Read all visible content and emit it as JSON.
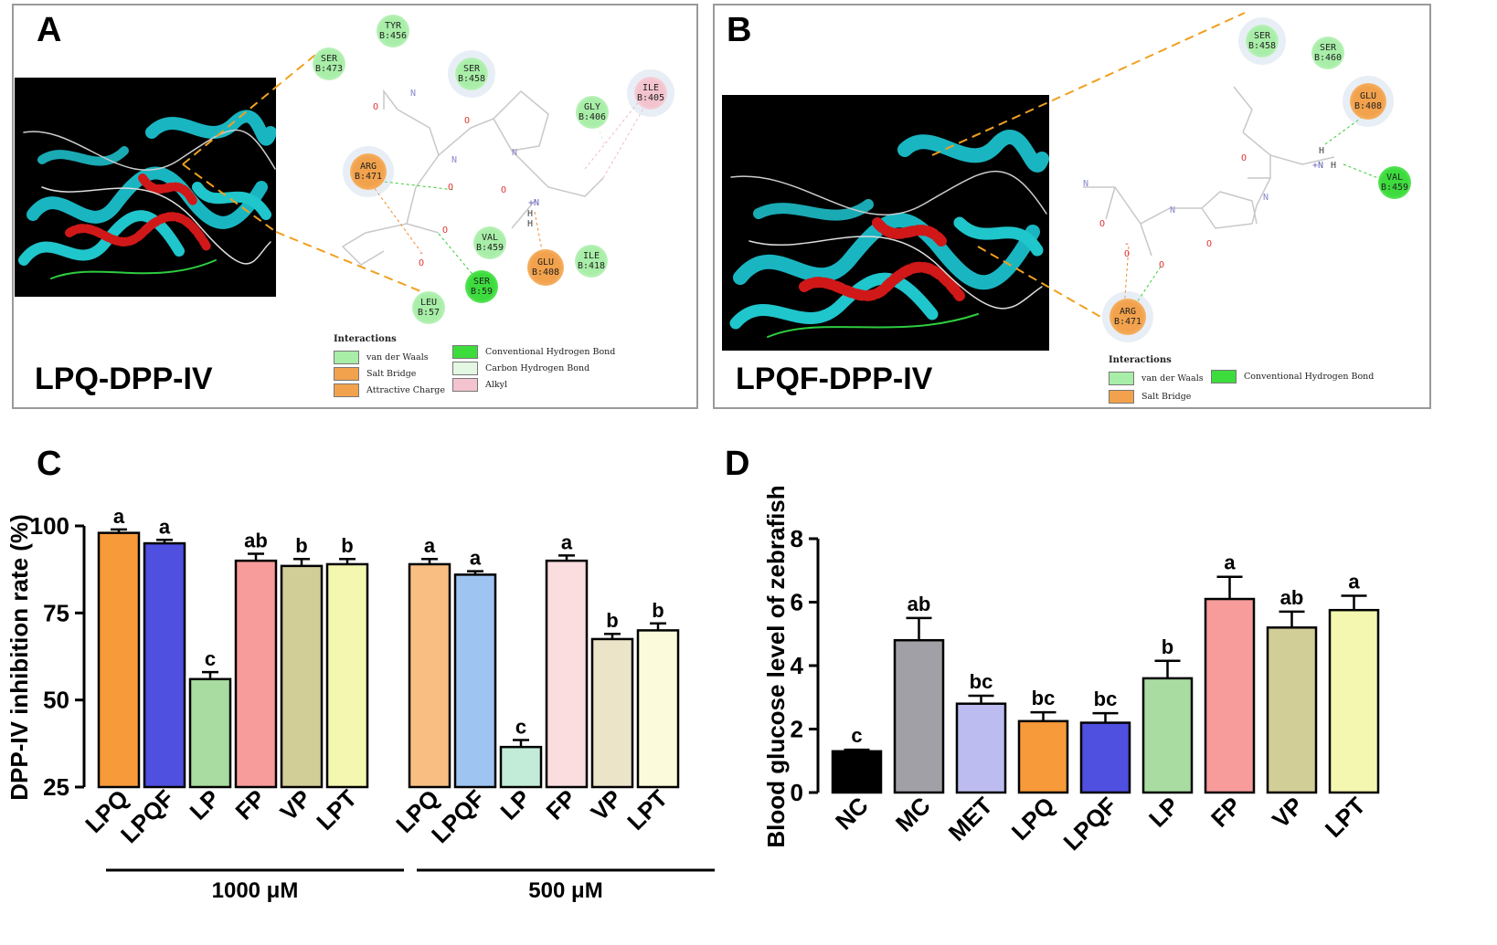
{
  "panels": {
    "a": {
      "label": "A",
      "title": "LPQ-DPP-IV",
      "residues": [
        {
          "name": "TYR",
          "id": "B:456",
          "kind": "vdw"
        },
        {
          "name": "SER",
          "id": "B:473",
          "kind": "vdw"
        },
        {
          "name": "SER",
          "id": "B:458",
          "kind": "vdw"
        },
        {
          "name": "GLY",
          "id": "B:406",
          "kind": "vdw"
        },
        {
          "name": "ILE",
          "id": "B:405",
          "kind": "alkyl"
        },
        {
          "name": "ARG",
          "id": "B:471",
          "kind": "salt"
        },
        {
          "name": "VAL",
          "id": "B:459",
          "kind": "vdw"
        },
        {
          "name": "ILE",
          "id": "B:418",
          "kind": "vdw"
        },
        {
          "name": "GLU",
          "id": "B:408",
          "kind": "salt"
        },
        {
          "name": "SER",
          "id": "B:59",
          "kind": "hbond"
        },
        {
          "name": "LEU",
          "id": "B:57",
          "kind": "vdw"
        }
      ],
      "legend_title": "Interactions",
      "legend": [
        "van der Waals",
        "Salt Bridge",
        "Attractive Charge",
        "Conventional Hydrogen Bond",
        "Carbon Hydrogen Bond",
        "Alkyl"
      ],
      "atoms": [
        "N",
        "O",
        "N",
        "O",
        "O",
        "N",
        "+N",
        "H H",
        "O",
        "-O",
        "O"
      ]
    },
    "b": {
      "label": "B",
      "title": "LPQF-DPP-IV",
      "residues": [
        {
          "name": "SER",
          "id": "B:458",
          "kind": "vdw"
        },
        {
          "name": "SER",
          "id": "B:460",
          "kind": "vdw"
        },
        {
          "name": "GLU",
          "id": "B:408",
          "kind": "salt"
        },
        {
          "name": "VAL",
          "id": "B:459",
          "kind": "hbond"
        },
        {
          "name": "ARG",
          "id": "B:471",
          "kind": "salt"
        }
      ],
      "legend_title": "Interactions",
      "legend": [
        "van der Waals",
        "Conventional Hydrogen Bond",
        "Salt Bridge"
      ],
      "atoms": [
        "H",
        "O",
        "+N",
        "H",
        "N",
        "O",
        "N",
        "O",
        "N",
        "-O",
        "O"
      ]
    }
  },
  "colors": {
    "vdw": "#a8eea8",
    "salt": "#f2a24c",
    "attractive": "#f2a24c",
    "hbond": "#3ddc3d",
    "carbon_h": "#e3f7e3",
    "alkyl": "#f3c4cf"
  },
  "chart_data": [
    {
      "panel": "C",
      "type": "bar",
      "ylabel": "DPP-IV inhibition rate (%)",
      "ylim": [
        25,
        100
      ],
      "yticks": [
        25,
        50,
        75,
        100
      ],
      "groups": [
        {
          "label": "1000 μM",
          "categories": [
            "LPQ",
            "LPQF",
            "LP",
            "FP",
            "VP",
            "LPT"
          ],
          "values": [
            98,
            95,
            56,
            90,
            88.5,
            89
          ],
          "errors": [
            1,
            1,
            2,
            2,
            2,
            1.5
          ],
          "letters": [
            "a",
            "a",
            "c",
            "ab",
            "b",
            "b"
          ],
          "colors": [
            "#f79a3a",
            "#4f4fe0",
            "#a8dca0",
            "#f79b9b",
            "#d2ce98",
            "#f4f7b0"
          ]
        },
        {
          "label": "500 μM",
          "categories": [
            "LPQ",
            "LPQF",
            "LP",
            "FP",
            "VP",
            "LPT"
          ],
          "values": [
            89,
            86,
            36.5,
            90,
            67.5,
            70
          ],
          "errors": [
            1.5,
            1,
            2,
            1.5,
            1.5,
            2
          ],
          "letters": [
            "a",
            "a",
            "c",
            "a",
            "b",
            "b"
          ],
          "colors": [
            "#f9bf82",
            "#9ec4f2",
            "#c2ecd8",
            "#fbdcdf",
            "#ebe4c8",
            "#fbfadb"
          ]
        }
      ]
    },
    {
      "panel": "D",
      "type": "bar",
      "ylabel": "Blood glucose level of zebrafish",
      "ylim": [
        0,
        8
      ],
      "yticks": [
        0,
        2,
        4,
        6,
        8
      ],
      "categories": [
        "NC",
        "MC",
        "MET",
        "LPQ",
        "LPQF",
        "LP",
        "FP",
        "VP",
        "LPT"
      ],
      "values": [
        1.3,
        4.8,
        2.8,
        2.25,
        2.2,
        3.6,
        6.1,
        5.2,
        5.75
      ],
      "errors": [
        0.05,
        0.7,
        0.25,
        0.28,
        0.3,
        0.55,
        0.7,
        0.5,
        0.45
      ],
      "letters": [
        "c",
        "ab",
        "bc",
        "bc",
        "bc",
        "b",
        "a",
        "ab",
        "a"
      ],
      "colors": [
        "#000000",
        "#a0a0a6",
        "#bcbcf0",
        "#f79a3a",
        "#4f4fe0",
        "#a8dca0",
        "#f79b9b",
        "#d2ce98",
        "#f4f7b0"
      ]
    }
  ]
}
